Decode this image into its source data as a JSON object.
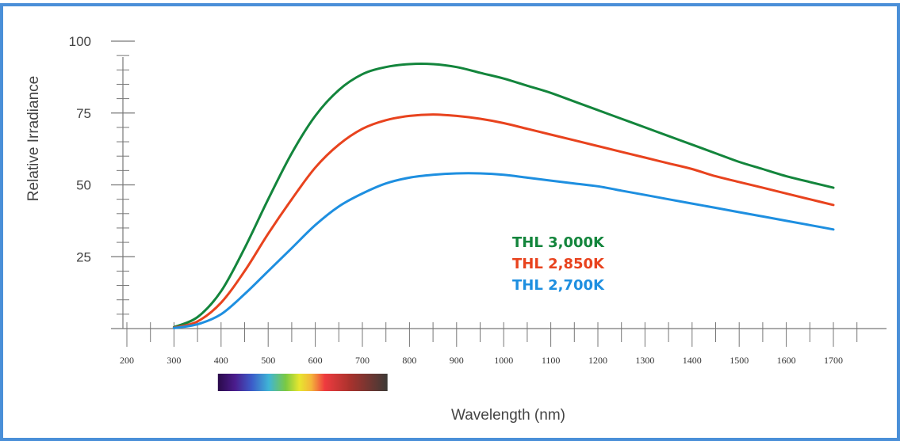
{
  "chart_data": {
    "type": "line",
    "xlabel": "Wavelength (nm)",
    "ylabel": "Relative Irradiance",
    "xlim": [
      200,
      1700
    ],
    "ylim": [
      0,
      100
    ],
    "x_ticks": [
      200,
      300,
      400,
      500,
      600,
      700,
      800,
      900,
      1000,
      1100,
      1200,
      1300,
      1400,
      1500,
      1600,
      1700
    ],
    "x_tick_labels": [
      "200",
      "300",
      "400",
      "500",
      "600",
      "700",
      "800",
      "900",
      "1000",
      "1100",
      "1200",
      "1300",
      "1400",
      "1500",
      "1600",
      "1700"
    ],
    "y_ticks": [
      25,
      50,
      75,
      100
    ],
    "y_tick_labels": [
      "25",
      "50",
      "75",
      "100"
    ],
    "grid": false,
    "legend_position": "center",
    "visible_spectrum_band": [
      400,
      750
    ],
    "x": [
      300,
      350,
      400,
      450,
      500,
      550,
      600,
      650,
      700,
      750,
      800,
      850,
      900,
      950,
      1000,
      1050,
      1100,
      1150,
      1200,
      1250,
      1300,
      1350,
      1400,
      1450,
      1500,
      1550,
      1600,
      1650,
      1700
    ],
    "series": [
      {
        "name": "THL 3,000K",
        "color": "#13853c",
        "values": [
          0.5,
          4,
          13,
          28,
          45,
          61,
          74,
          83,
          88.5,
          91,
          92,
          92,
          91,
          89,
          87,
          84.5,
          82,
          79,
          76,
          73,
          70,
          67,
          64,
          61,
          58,
          55.5,
          53,
          51,
          49
        ]
      },
      {
        "name": "THL 2,850K",
        "color": "#e8431e",
        "values": [
          0.3,
          2.5,
          9,
          20,
          33,
          45,
          56,
          64,
          69.5,
          72.5,
          74,
          74.5,
          74,
          73,
          71.5,
          69.5,
          67.5,
          65.5,
          63.5,
          61.5,
          59.5,
          57.5,
          55.5,
          53,
          51,
          49,
          47,
          45,
          43
        ]
      },
      {
        "name": "THL 2,700K",
        "color": "#1e8fe0",
        "values": [
          0.2,
          1.5,
          5,
          12,
          20,
          28,
          36,
          42.5,
          47,
          50.5,
          52.5,
          53.5,
          54,
          54,
          53.5,
          52.5,
          51.5,
          50.5,
          49.5,
          48,
          46.5,
          45,
          43.5,
          42,
          40.5,
          39,
          37.5,
          36,
          34.5
        ]
      }
    ]
  }
}
